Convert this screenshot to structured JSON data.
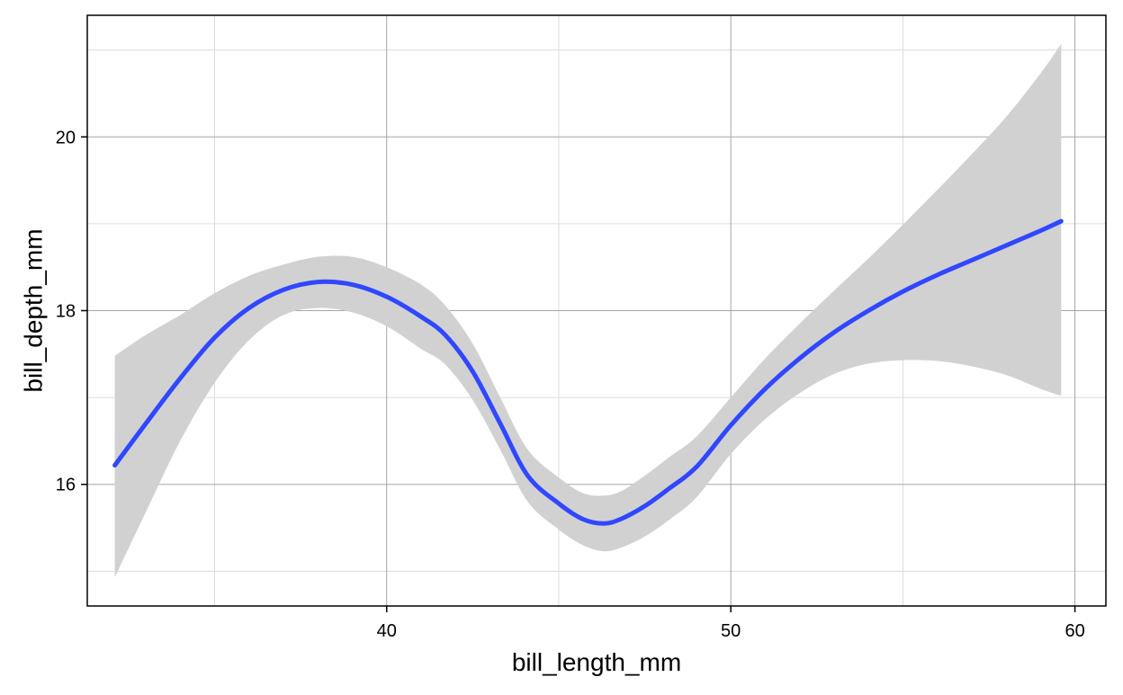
{
  "chart_data": {
    "type": "line",
    "title": "",
    "xlabel": "bill_length_mm",
    "ylabel": "bill_depth_mm",
    "xlim": [
      31.3,
      60.9
    ],
    "ylim": [
      14.6,
      21.4
    ],
    "x_ticks": [
      40,
      50,
      60
    ],
    "y_ticks": [
      16,
      18,
      20
    ],
    "x_tick_labels": [
      "40",
      "50",
      "60"
    ],
    "y_tick_labels": [
      "16",
      "18",
      "20"
    ],
    "x_minor_ticks": [
      35,
      45,
      55
    ],
    "y_minor_ticks": [
      15,
      17,
      19,
      21
    ],
    "grid": true,
    "legend": "none",
    "colors": {
      "line": "#3047ff",
      "ribbon": "#d1d1d1",
      "grid_major": "#a6a6a6",
      "grid_minor": "#dcdcdc",
      "border": "#000000"
    },
    "series": [
      {
        "x": [
          32.1,
          33.0,
          34.0,
          35.0,
          36.0,
          37.0,
          38.0,
          39.0,
          40.0,
          41.0,
          41.7,
          42.5,
          43.3,
          44.1,
          45.0,
          45.7,
          46.3,
          46.8,
          47.5,
          48.2,
          49.0,
          50.0,
          51.0,
          52.0,
          53.0,
          54.0,
          55.0,
          56.0,
          57.0,
          58.0,
          59.0,
          59.6
        ],
        "y": [
          16.22,
          16.7,
          17.22,
          17.69,
          18.03,
          18.24,
          18.33,
          18.3,
          18.16,
          17.93,
          17.72,
          17.3,
          16.7,
          16.1,
          15.78,
          15.6,
          15.55,
          15.6,
          15.75,
          15.95,
          16.2,
          16.68,
          17.1,
          17.45,
          17.75,
          18.0,
          18.22,
          18.41,
          18.58,
          18.75,
          18.92,
          19.03
        ],
        "lower": [
          14.93,
          15.68,
          16.5,
          17.17,
          17.66,
          17.95,
          18.03,
          17.98,
          17.82,
          17.56,
          17.38,
          16.97,
          16.4,
          15.8,
          15.48,
          15.3,
          15.23,
          15.27,
          15.4,
          15.59,
          15.85,
          16.35,
          16.75,
          17.05,
          17.27,
          17.39,
          17.43,
          17.42,
          17.36,
          17.26,
          17.1,
          17.02
        ],
        "upper": [
          17.48,
          17.72,
          17.95,
          18.2,
          18.4,
          18.53,
          18.62,
          18.62,
          18.5,
          18.3,
          18.06,
          17.62,
          17.0,
          16.4,
          16.08,
          15.9,
          15.87,
          15.92,
          16.1,
          16.31,
          16.55,
          17.0,
          17.45,
          17.85,
          18.23,
          18.6,
          18.99,
          19.39,
          19.8,
          20.23,
          20.73,
          21.07
        ]
      }
    ]
  }
}
